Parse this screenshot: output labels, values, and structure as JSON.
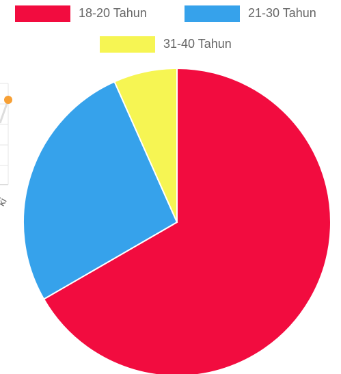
{
  "chart_data": {
    "type": "pie",
    "categories": [
      "18-20 Tahun",
      "21-30 Tahun",
      "31-40 Tahun"
    ],
    "values": [
      20,
      8,
      2
    ],
    "colors": [
      "#f20c3f",
      "#36a2eb",
      "#f6f553"
    ],
    "legend": "top"
  },
  "background_fragment": {
    "label": "ki"
  }
}
